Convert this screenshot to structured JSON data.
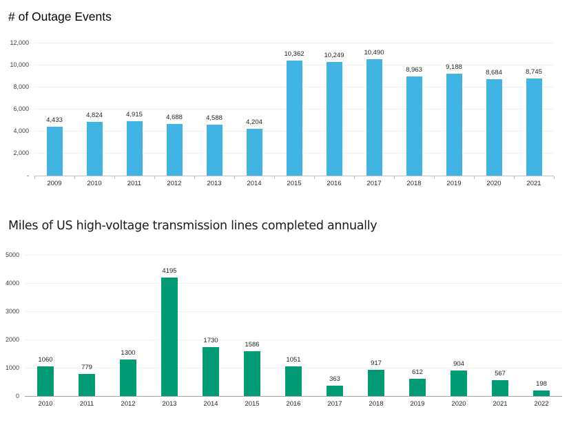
{
  "chart_data": [
    {
      "type": "bar",
      "title": "# of Outage Events",
      "categories": [
        "2009",
        "2010",
        "2011",
        "2012",
        "2013",
        "2014",
        "2015",
        "2016",
        "2017",
        "2018",
        "2019",
        "2020",
        "2021"
      ],
      "values": [
        4433,
        4824,
        4915,
        4688,
        4588,
        4204,
        10362,
        10249,
        10490,
        8963,
        9188,
        8684,
        8745
      ],
      "value_labels": [
        "4,433",
        "4,824",
        "4,915",
        "4,688",
        "4,588",
        "4,204",
        "10,362",
        "10,249",
        "10,490",
        "8,963",
        "9,188",
        "8,684",
        "8,745"
      ],
      "xlabel": "",
      "ylabel": "",
      "ylim": [
        0,
        12000
      ],
      "yticks": [
        {
          "value": 12000,
          "label": "12,000"
        },
        {
          "value": 10000,
          "label": "10,000"
        },
        {
          "value": 8000,
          "label": "8,000"
        },
        {
          "value": 6000,
          "label": "6,000"
        },
        {
          "value": 4000,
          "label": "4,000"
        },
        {
          "value": 2000,
          "label": "2,000"
        },
        {
          "value": 0,
          "label": "-"
        }
      ],
      "grid": true,
      "legend": false,
      "bar_color": "#41b4e4"
    },
    {
      "type": "bar",
      "title": "Miles of US high-voltage transmission lines completed annually",
      "categories": [
        "2010",
        "2011",
        "2012",
        "2013",
        "2014",
        "2015",
        "2016",
        "2017",
        "2018",
        "2019",
        "2020",
        "2021",
        "2022"
      ],
      "values": [
        1060,
        779,
        1300,
        4195,
        1730,
        1586,
        1051,
        363,
        917,
        612,
        904,
        567,
        198
      ],
      "value_labels": [
        "1060",
        "779",
        "1300",
        "4195",
        "1730",
        "1586",
        "1051",
        "363",
        "917",
        "612",
        "904",
        "567",
        "198"
      ],
      "xlabel": "",
      "ylabel": "",
      "ylim": [
        0,
        5000
      ],
      "yticks": [
        {
          "value": 5000,
          "label": "5000"
        },
        {
          "value": 4000,
          "label": "4000"
        },
        {
          "value": 3000,
          "label": "3000"
        },
        {
          "value": 2000,
          "label": "2000"
        },
        {
          "value": 1000,
          "label": "1000"
        },
        {
          "value": 0,
          "label": "0"
        }
      ],
      "grid": true,
      "legend": false,
      "bar_color": "#009a75"
    }
  ]
}
